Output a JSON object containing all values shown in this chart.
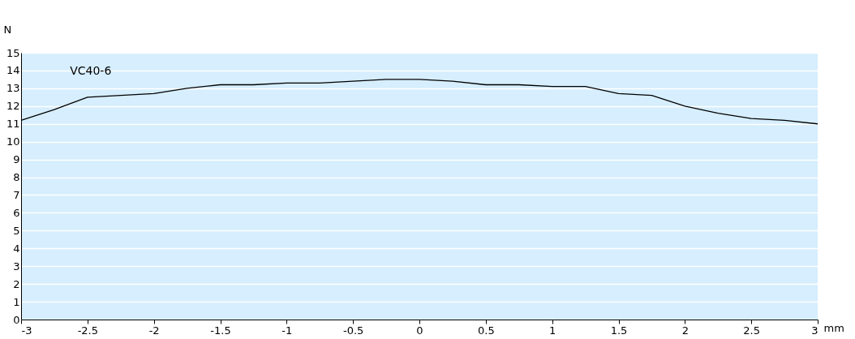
{
  "chart_data": {
    "type": "line",
    "xlabel": "mm",
    "ylabel": "N",
    "x": [
      -3,
      -2.75,
      -2.5,
      -2.25,
      -2,
      -1.75,
      -1.5,
      -1.25,
      -1,
      -0.75,
      -0.5,
      -0.25,
      0,
      0.25,
      0.5,
      0.75,
      1,
      1.25,
      1.5,
      1.75,
      2,
      2.25,
      2.5,
      2.75,
      3
    ],
    "series": [
      {
        "name": "VC40-6",
        "color": "#000000",
        "values": [
          11.2,
          11.8,
          12.5,
          12.6,
          12.7,
          13.0,
          13.2,
          13.2,
          13.3,
          13.3,
          13.4,
          13.5,
          13.5,
          13.4,
          13.2,
          13.2,
          13.1,
          13.1,
          12.7,
          12.6,
          12.0,
          11.6,
          11.3,
          11.2,
          11.0
        ]
      }
    ],
    "xlim": [
      -3,
      3
    ],
    "xticks": [
      -3,
      -2.5,
      -2,
      -1.5,
      -1,
      -0.5,
      0,
      0.5,
      1,
      1.5,
      2,
      2.5,
      3
    ],
    "ylim": [
      0,
      15
    ],
    "yticks": [
      0,
      1,
      2,
      3,
      4,
      5,
      6,
      7,
      8,
      9,
      10,
      11,
      12,
      13,
      14,
      15
    ],
    "grid": "y",
    "marker": "none",
    "line_style": "solid",
    "legend": false
  }
}
